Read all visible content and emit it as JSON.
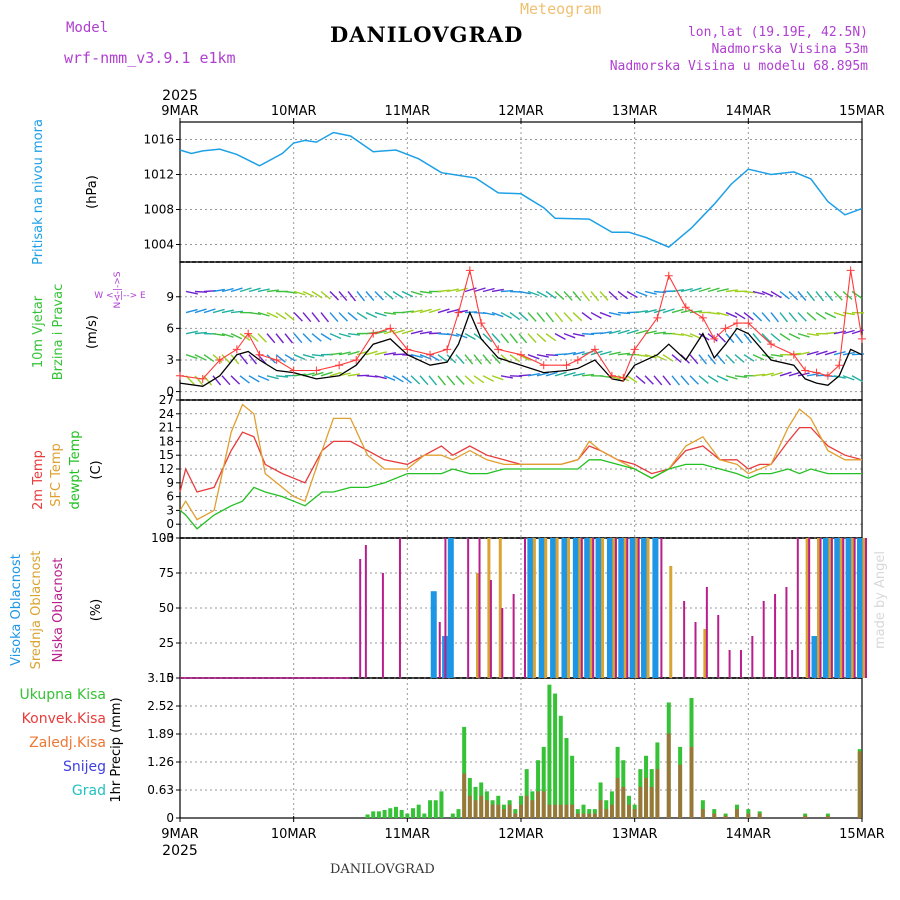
{
  "header": {
    "model_label": "Model",
    "model_name": "wrf-nmm_v3.9.1 e1km",
    "station": "DANILOVGRAD",
    "product": "Meteogram",
    "lonlat": "lon,lat (19.19E, 42.5N)",
    "elevation": "Nadmorska Visina 53m",
    "model_elevation": "Nadmorska Visina u modelu 68.895m",
    "footer_station": "DANILOVGRAD",
    "watermark": "made by Angel"
  },
  "colors": {
    "pressure": "#1ea0e6",
    "temp2m": "#e83c3c",
    "sfc": "#e0a030",
    "dew": "#22c022",
    "high_cloud": "#1e96e6",
    "mid_cloud": "#d9a431",
    "low_cloud": "#b81e8c",
    "total_precip": "#36c236",
    "conv_precip": "#e83c3c",
    "freezing": "#ee7733",
    "snow": "#4040e0",
    "hail": "#22c0c0",
    "wind_speed": "#000000",
    "gust": "#ff3a3a",
    "violet_label": "#b040d0",
    "orange_label": "#f0c070"
  },
  "chart_data": [
    {
      "id": "pressure",
      "type": "line",
      "title": "",
      "ylabel_lines": [
        "Pritisak na nivou mora",
        "(hPa)"
      ],
      "ylim": [
        1002,
        1018
      ],
      "yticks": [
        1004,
        1008,
        1012,
        1016
      ],
      "x_days": [
        0,
        0.1,
        0.2,
        0.35,
        0.5,
        0.7,
        0.9,
        1.0,
        1.1,
        1.2,
        1.35,
        1.5,
        1.7,
        1.9,
        2.1,
        2.3,
        2.6,
        2.8,
        3.0,
        3.2,
        3.3,
        3.6,
        3.8,
        3.95,
        4.1,
        4.3,
        4.5,
        4.7,
        4.85,
        5.0,
        5.2,
        5.4,
        5.55,
        5.7,
        5.85,
        6.0
      ],
      "values": [
        1014.8,
        1014.4,
        1014.7,
        1014.9,
        1014.3,
        1013.0,
        1014.4,
        1015.6,
        1015.9,
        1015.7,
        1016.8,
        1016.4,
        1014.6,
        1014.8,
        1013.8,
        1012.2,
        1011.6,
        1009.9,
        1009.8,
        1008.2,
        1007.0,
        1006.9,
        1005.4,
        1005.4,
        1004.8,
        1003.7,
        1005.9,
        1008.6,
        1010.9,
        1012.6,
        1012.0,
        1012.3,
        1011.5,
        1008.9,
        1007.4,
        1008.1
      ]
    },
    {
      "id": "wind",
      "type": "line",
      "title": "",
      "ylabel_lines": [
        "10m Vjetar",
        "Brzina i Pravac",
        "(m/s)"
      ],
      "compass": "W <--|--> E",
      "compass_vertical": "N<-|->S",
      "ylim": [
        -0.8,
        12.3
      ],
      "yticks": [
        0,
        3,
        6,
        9
      ],
      "x_days": [
        0,
        0.2,
        0.35,
        0.5,
        0.6,
        0.7,
        0.85,
        1.0,
        1.2,
        1.4,
        1.55,
        1.7,
        1.85,
        2.0,
        2.2,
        2.35,
        2.45,
        2.55,
        2.65,
        2.8,
        3.0,
        3.2,
        3.4,
        3.5,
        3.65,
        3.8,
        3.9,
        4.0,
        4.2,
        4.3,
        4.45,
        4.6,
        4.7,
        4.8,
        4.9,
        5.0,
        5.2,
        5.4,
        5.5,
        5.6,
        5.7,
        5.8,
        5.9,
        6.0
      ],
      "series": [
        {
          "values": [
            0.8,
            0.5,
            1.5,
            3.5,
            3.8,
            3.0,
            2.0,
            1.8,
            1.2,
            1.5,
            2.5,
            4.5,
            5.0,
            3.5,
            2.5,
            2.8,
            4.5,
            7.5,
            5.0,
            3.2,
            2.5,
            1.8,
            2.0,
            2.2,
            3.0,
            1.2,
            1.0,
            2.5,
            3.5,
            4.5,
            3.0,
            5.5,
            3.2,
            4.5,
            6.0,
            5.5,
            3.0,
            2.5,
            1.2,
            0.8,
            0.6,
            1.5,
            4.0,
            3.5
          ]
        },
        {
          "values": [
            1.5,
            1.2,
            3.0,
            4.0,
            5.5,
            3.5,
            3.0,
            2.0,
            2.0,
            2.5,
            3.0,
            5.5,
            6.0,
            4.0,
            3.5,
            4.0,
            7.5,
            11.5,
            6.5,
            4.0,
            3.5,
            2.5,
            2.5,
            3.0,
            4.0,
            1.5,
            1.3,
            4.0,
            7.0,
            11.0,
            8.0,
            7.0,
            5.0,
            6.0,
            6.5,
            6.5,
            4.5,
            3.5,
            2.0,
            1.8,
            1.5,
            2.5,
            11.5,
            5.0
          ]
        }
      ]
    },
    {
      "id": "temperature",
      "type": "line",
      "title": "",
      "ylabel_lines": [
        "2m Temp",
        "SFC Temp",
        "dewpt Temp",
        "(C)"
      ],
      "ylim": [
        -3,
        27
      ],
      "yticks": [
        -3,
        0,
        3,
        6,
        9,
        12,
        15,
        18,
        21,
        24,
        27
      ],
      "x_days": [
        0,
        0.05,
        0.15,
        0.3,
        0.45,
        0.55,
        0.65,
        0.75,
        0.9,
        1.0,
        1.1,
        1.25,
        1.35,
        1.5,
        1.65,
        1.8,
        2.0,
        2.15,
        2.3,
        2.4,
        2.55,
        2.7,
        2.85,
        3.0,
        3.2,
        3.35,
        3.5,
        3.6,
        3.7,
        3.85,
        4.0,
        4.15,
        4.3,
        4.45,
        4.6,
        4.75,
        4.9,
        5.0,
        5.1,
        5.2,
        5.35,
        5.45,
        5.55,
        5.7,
        5.85,
        6.0
      ],
      "series": [
        {
          "values": [
            7,
            12,
            7,
            8,
            16,
            20,
            19,
            13,
            11,
            10,
            9,
            16,
            18,
            18,
            16,
            14,
            13,
            15,
            17,
            15,
            17,
            15,
            14,
            13,
            13,
            13,
            14,
            17,
            16,
            14,
            13,
            11,
            12,
            16,
            17,
            14,
            14,
            12,
            13,
            13,
            18,
            21,
            21,
            17,
            15,
            14
          ]
        },
        {
          "values": [
            3,
            5,
            1,
            3,
            20,
            26,
            24,
            11,
            8,
            6,
            5,
            16,
            23,
            23,
            15,
            12,
            12,
            15,
            15,
            14,
            16,
            14,
            13,
            13,
            13,
            13,
            14,
            18,
            16,
            14,
            12,
            10,
            12,
            17,
            19,
            14,
            13,
            11,
            12,
            13,
            21,
            25,
            23,
            16,
            14,
            14
          ]
        },
        {
          "values": [
            3,
            2,
            -1,
            2,
            4,
            5,
            8,
            7,
            6,
            5,
            4,
            7,
            7,
            8,
            8,
            9,
            11,
            11,
            11,
            12,
            11,
            11,
            12,
            12,
            12,
            12,
            12,
            14,
            14,
            13,
            12,
            10,
            12,
            13,
            13,
            12,
            11,
            10,
            11,
            11,
            12,
            11,
            12,
            11,
            11,
            11
          ]
        }
      ]
    },
    {
      "id": "clouds",
      "type": "bar",
      "title": "",
      "ylabel_lines": [
        "Visoka Oblacnost",
        "Srednja Oblacnost",
        "Niska Oblacnost",
        "(%)"
      ],
      "ylim": [
        0,
        100
      ],
      "yticks": [
        0,
        25,
        50,
        75,
        100
      ],
      "x_days": [
        1.55,
        1.6,
        1.75,
        1.9,
        2.0,
        2.05,
        2.1,
        2.2,
        2.25,
        2.3,
        2.35,
        2.4,
        2.5,
        2.6,
        2.7,
        2.8,
        2.9,
        3.0,
        3.1,
        3.2,
        3.3,
        3.4,
        3.5,
        3.6,
        3.7,
        3.8,
        3.9,
        4.0,
        4.1,
        4.2,
        4.3,
        4.4,
        4.5,
        4.6,
        4.7,
        4.8,
        4.9,
        5.0,
        5.1,
        5.2,
        5.3,
        5.35,
        5.4,
        5.5,
        5.6,
        5.7,
        5.8,
        5.9,
        6.0
      ],
      "series": [
        {
          "values": [
            0,
            0,
            0,
            0,
            0,
            0,
            0,
            0,
            62,
            0,
            30,
            100,
            0,
            0,
            0,
            0,
            0,
            0,
            100,
            100,
            100,
            100,
            100,
            100,
            100,
            100,
            100,
            100,
            100,
            100,
            0,
            0,
            0,
            0,
            0,
            0,
            0,
            0,
            0,
            0,
            0,
            0,
            0,
            0,
            30,
            100,
            100,
            100,
            100
          ]
        },
        {
          "values": [
            0,
            0,
            0,
            0,
            0,
            0,
            0,
            0,
            0,
            0,
            0,
            0,
            0,
            75,
            100,
            100,
            0,
            0,
            100,
            100,
            100,
            100,
            100,
            100,
            100,
            100,
            100,
            100,
            100,
            0,
            80,
            0,
            0,
            35,
            0,
            0,
            0,
            0,
            0,
            0,
            0,
            0,
            0,
            100,
            100,
            100,
            100,
            100,
            100
          ]
        },
        {
          "values": [
            85,
            95,
            75,
            100,
            0,
            0,
            0,
            0,
            40,
            100,
            0,
            0,
            100,
            100,
            70,
            50,
            60,
            100,
            0,
            0,
            0,
            0,
            100,
            100,
            0,
            100,
            100,
            100,
            0,
            100,
            0,
            55,
            40,
            65,
            45,
            20,
            20,
            30,
            55,
            60,
            65,
            20,
            100,
            100,
            100,
            100,
            100,
            100,
            100
          ]
        }
      ]
    },
    {
      "id": "precip",
      "type": "bar",
      "title": "",
      "ylabel": "1hr Precip (mm)",
      "legend": [
        "Ukupna Kisa",
        "Konvek.Kisa",
        "Zaledj.Kisa",
        "Snijeg",
        "Grad"
      ],
      "ylim": [
        0,
        3.15
      ],
      "yticks": [
        0,
        0.63,
        1.26,
        1.89,
        2.52,
        3.15
      ],
      "x_days": [
        1.65,
        1.7,
        1.75,
        1.8,
        1.85,
        1.9,
        1.95,
        2.0,
        2.05,
        2.1,
        2.15,
        2.2,
        2.25,
        2.3,
        2.4,
        2.45,
        2.5,
        2.55,
        2.6,
        2.65,
        2.7,
        2.75,
        2.8,
        2.85,
        2.9,
        2.95,
        3.0,
        3.05,
        3.1,
        3.15,
        3.2,
        3.25,
        3.3,
        3.35,
        3.4,
        3.45,
        3.5,
        3.55,
        3.6,
        3.65,
        3.7,
        3.75,
        3.8,
        3.85,
        3.9,
        3.95,
        4.0,
        4.05,
        4.1,
        4.15,
        4.2,
        4.3,
        4.4,
        4.5,
        4.6,
        4.7,
        4.8,
        4.9,
        5.0,
        5.1,
        5.5,
        5.7,
        5.98
      ],
      "series": [
        {
          "name": "Ukupna Kisa",
          "values": [
            0.08,
            0.15,
            0.15,
            0.18,
            0.22,
            0.25,
            0.18,
            0.1,
            0.22,
            0.3,
            0.1,
            0.4,
            0.4,
            0.6,
            0.1,
            0.2,
            2.05,
            0.9,
            0.7,
            0.8,
            0.6,
            0.4,
            0.5,
            0.3,
            0.4,
            0.2,
            0.5,
            1.1,
            0.6,
            1.3,
            1.6,
            3.0,
            2.8,
            2.3,
            1.8,
            1.4,
            0.2,
            0.3,
            0.2,
            0.2,
            0.8,
            0.4,
            0.6,
            1.6,
            1.3,
            0.5,
            0.3,
            1.1,
            1.4,
            1.1,
            1.7,
            2.6,
            1.6,
            2.7,
            0.4,
            0.2,
            0.1,
            0.3,
            0.2,
            0.15,
            0.1,
            0.1,
            1.55
          ]
        },
        {
          "name": "Konvek.Kisa",
          "values": [
            0,
            0,
            0,
            0,
            0,
            0,
            0,
            0,
            0,
            0,
            0,
            0,
            0,
            0,
            0,
            0,
            1.0,
            0.5,
            0.4,
            0.5,
            0.4,
            0.3,
            0.3,
            0.2,
            0.3,
            0.1,
            0.3,
            0.5,
            0.4,
            0.6,
            0.6,
            0.3,
            0.3,
            0.3,
            0.3,
            0.3,
            0.1,
            0.1,
            0.1,
            0.1,
            0.4,
            0.2,
            0.3,
            0.9,
            0.7,
            0.3,
            0.2,
            0.7,
            0.9,
            0.7,
            1.1,
            1.9,
            1.2,
            1.6,
            0.2,
            0.1,
            0.05,
            0.2,
            0.1,
            0.1,
            0.05,
            0.05,
            1.5
          ]
        }
      ]
    }
  ],
  "x_axis": {
    "year": "2025",
    "days": [
      "9MAR",
      "10MAR",
      "11MAR",
      "12MAR",
      "13MAR",
      "14MAR",
      "15MAR"
    ]
  }
}
